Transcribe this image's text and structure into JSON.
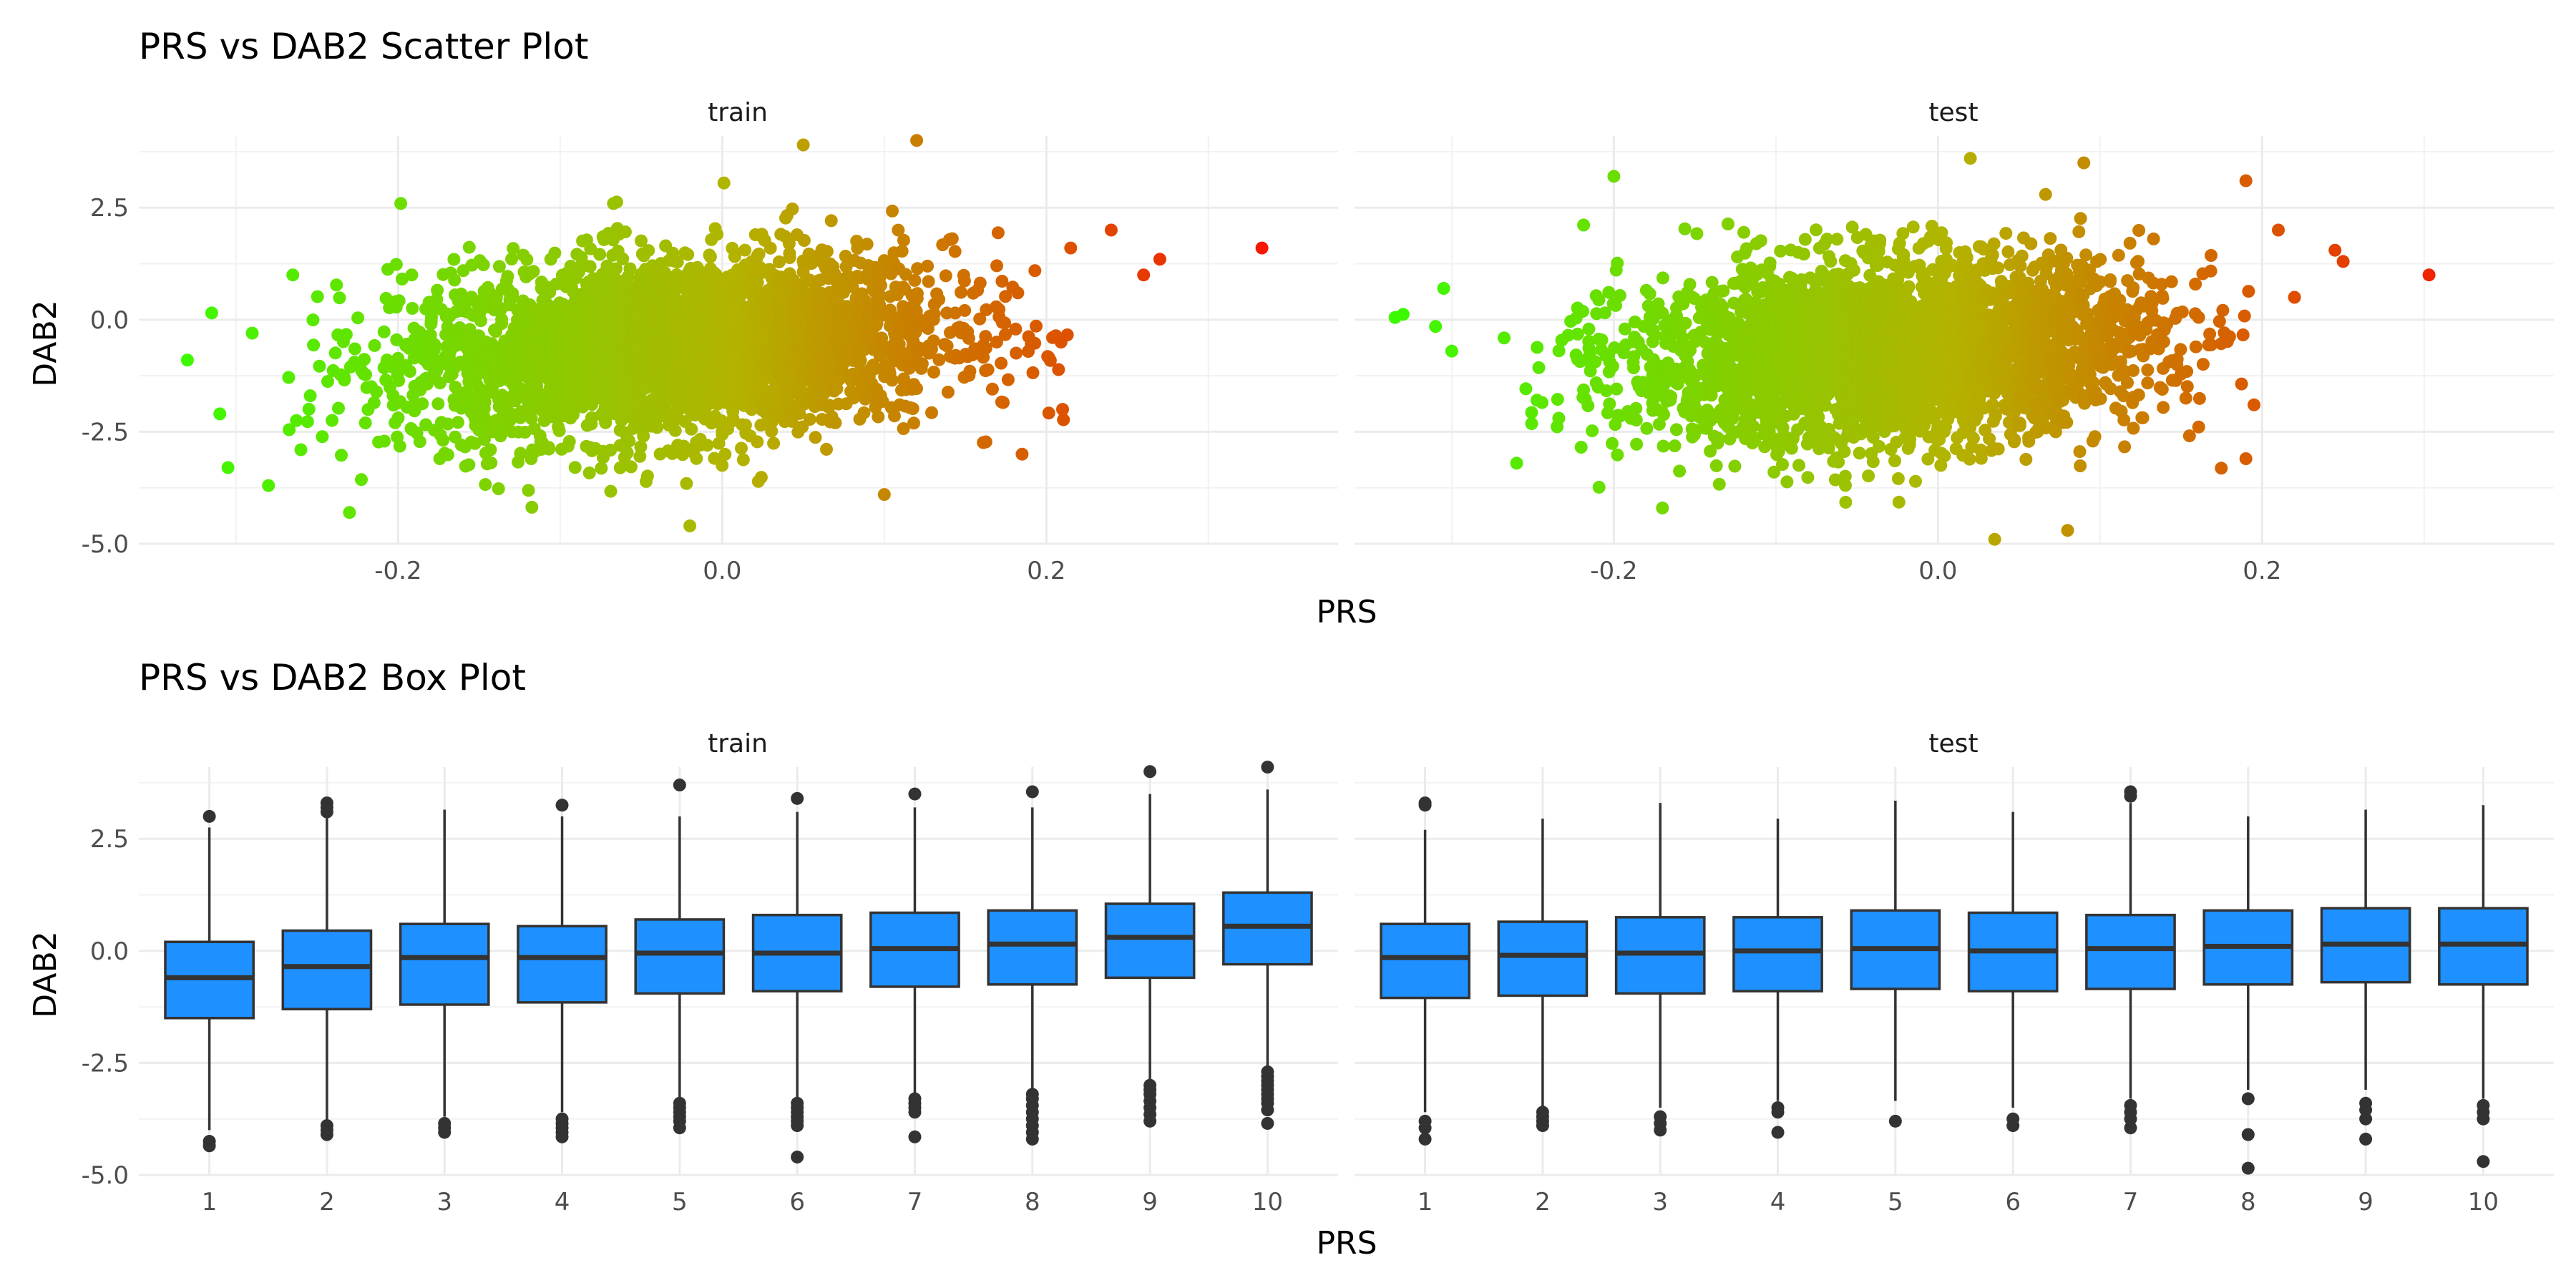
{
  "chart_data": [
    {
      "type": "scatter",
      "title": "PRS vs DAB2 Scatter Plot",
      "xlabel": "PRS",
      "ylabel": "DAB2",
      "facets": [
        "train",
        "test"
      ],
      "xlim": [
        -0.36,
        0.38
      ],
      "ylim": [
        -5.0,
        4.1
      ],
      "x_ticks": [
        -0.2,
        0.0,
        0.2
      ],
      "x_tick_labels": [
        "-0.2",
        "0.0",
        "0.2"
      ],
      "y_ticks": [
        -5.0,
        -2.5,
        0.0,
        2.5
      ],
      "y_tick_labels": [
        "-5.0",
        "-2.5",
        "0.0",
        "2.5"
      ],
      "grid": true,
      "color_scale": {
        "low": "#33ff00",
        "mid": "#b3b300",
        "high": "#ff0000",
        "variable": "PRS"
      },
      "panels": [
        {
          "facet": "train",
          "point_cloud": {
            "x_mean": -0.03,
            "x_sd": 0.085,
            "y_mean": -0.6,
            "y_sd": 1.0,
            "slope": 2.2
          },
          "outliers": [
            {
              "x": 0.333,
              "y": 1.6
            },
            {
              "x": 0.27,
              "y": 1.35
            },
            {
              "x": 0.26,
              "y": 1.0
            },
            {
              "x": 0.24,
              "y": 2.0
            },
            {
              "x": 0.215,
              "y": 1.6
            },
            {
              "x": 0.21,
              "y": -2.0
            },
            {
              "x": 0.185,
              "y": -3.0
            },
            {
              "x": -0.33,
              "y": -0.9
            },
            {
              "x": -0.315,
              "y": 0.15
            },
            {
              "x": -0.31,
              "y": -2.1
            },
            {
              "x": -0.305,
              "y": -3.3
            },
            {
              "x": -0.29,
              "y": -0.3
            },
            {
              "x": -0.28,
              "y": -3.7
            },
            {
              "x": -0.265,
              "y": 1.0
            },
            {
              "x": -0.26,
              "y": -2.9
            },
            {
              "x": 0.12,
              "y": 4.0
            },
            {
              "x": -0.02,
              "y": -4.6
            },
            {
              "x": 0.05,
              "y": 3.9
            },
            {
              "x": -0.23,
              "y": -4.3
            },
            {
              "x": 0.1,
              "y": -3.9
            }
          ]
        },
        {
          "facet": "test",
          "point_cloud": {
            "x_mean": -0.03,
            "x_sd": 0.08,
            "y_mean": -0.7,
            "y_sd": 1.0,
            "slope": 2.0
          },
          "outliers": [
            {
              "x": 0.303,
              "y": 1.0
            },
            {
              "x": 0.25,
              "y": 1.3
            },
            {
              "x": 0.245,
              "y": 1.55
            },
            {
              "x": 0.22,
              "y": 0.5
            },
            {
              "x": 0.21,
              "y": 2.0
            },
            {
              "x": 0.195,
              "y": -1.9
            },
            {
              "x": 0.19,
              "y": -3.1
            },
            {
              "x": -0.335,
              "y": 0.05
            },
            {
              "x": -0.33,
              "y": 0.12
            },
            {
              "x": -0.31,
              "y": -0.15
            },
            {
              "x": -0.305,
              "y": 0.7
            },
            {
              "x": -0.3,
              "y": -0.7
            },
            {
              "x": -0.26,
              "y": -3.2
            },
            {
              "x": -0.2,
              "y": 3.2
            },
            {
              "x": 0.035,
              "y": -4.9
            },
            {
              "x": 0.08,
              "y": -4.7
            },
            {
              "x": 0.09,
              "y": 3.5
            },
            {
              "x": 0.02,
              "y": 3.6
            },
            {
              "x": -0.17,
              "y": -4.2
            },
            {
              "x": 0.19,
              "y": 3.1
            }
          ]
        }
      ]
    },
    {
      "type": "box",
      "title": "PRS vs DAB2 Box Plot",
      "xlabel": "PRS",
      "ylabel": "DAB2",
      "facets": [
        "train",
        "test"
      ],
      "categories": [
        "1",
        "2",
        "3",
        "4",
        "5",
        "6",
        "7",
        "8",
        "9",
        "10"
      ],
      "ylim": [
        -5.0,
        4.1
      ],
      "y_ticks": [
        -5.0,
        -2.5,
        0.0,
        2.5
      ],
      "y_tick_labels": [
        "-5.0",
        "-2.5",
        "0.0",
        "2.5"
      ],
      "box_fill": "#1e90ff",
      "box_line": "#333333",
      "grid": true,
      "panels": [
        {
          "facet": "train",
          "boxes": [
            {
              "category": "1",
              "q1": -1.5,
              "median": -0.6,
              "q3": 0.2,
              "whisker_low": -4.0,
              "whisker_high": 2.75,
              "outliers": [
                3.0,
                -4.25,
                -4.35
              ]
            },
            {
              "category": "2",
              "q1": -1.3,
              "median": -0.35,
              "q3": 0.45,
              "whisker_low": -3.8,
              "whisker_high": 3.0,
              "outliers": [
                3.1,
                3.2,
                3.3,
                -3.9,
                -4.0,
                -4.1
              ]
            },
            {
              "category": "3",
              "q1": -1.2,
              "median": -0.15,
              "q3": 0.6,
              "whisker_low": -3.7,
              "whisker_high": 3.15,
              "outliers": [
                -3.85,
                -3.95,
                -4.05
              ]
            },
            {
              "category": "4",
              "q1": -1.15,
              "median": -0.15,
              "q3": 0.55,
              "whisker_low": -3.6,
              "whisker_high": 3.0,
              "outliers": [
                3.25,
                -3.75,
                -3.85,
                -3.95,
                -4.05,
                -4.15
              ]
            },
            {
              "category": "5",
              "q1": -0.95,
              "median": -0.05,
              "q3": 0.7,
              "whisker_low": -3.3,
              "whisker_high": 3.0,
              "outliers": [
                3.7,
                -3.4,
                -3.5,
                -3.6,
                -3.7,
                -3.8,
                -3.95
              ]
            },
            {
              "category": "6",
              "q1": -0.9,
              "median": -0.05,
              "q3": 0.8,
              "whisker_low": -3.3,
              "whisker_high": 3.1,
              "outliers": [
                3.4,
                -3.4,
                -3.5,
                -3.6,
                -3.7,
                -3.8,
                -3.9,
                -4.6
              ]
            },
            {
              "category": "7",
              "q1": -0.8,
              "median": 0.05,
              "q3": 0.85,
              "whisker_low": -3.2,
              "whisker_high": 3.2,
              "outliers": [
                3.5,
                -3.3,
                -3.4,
                -3.5,
                -3.6,
                -4.15
              ]
            },
            {
              "category": "8",
              "q1": -0.75,
              "median": 0.15,
              "q3": 0.9,
              "whisker_low": -3.1,
              "whisker_high": 3.2,
              "outliers": [
                3.55,
                -3.2,
                -3.3,
                -3.45,
                -3.6,
                -3.75,
                -3.9,
                -4.05,
                -4.2
              ]
            },
            {
              "category": "9",
              "q1": -0.6,
              "median": 0.3,
              "q3": 1.05,
              "whisker_low": -2.9,
              "whisker_high": 3.5,
              "outliers": [
                4.0,
                -3.0,
                -3.1,
                -3.2,
                -3.35,
                -3.5,
                -3.65,
                -3.8
              ]
            },
            {
              "category": "10",
              "q1": -0.3,
              "median": 0.55,
              "q3": 1.3,
              "whisker_low": -2.6,
              "whisker_high": 3.6,
              "outliers": [
                4.1,
                -2.7,
                -2.8,
                -2.9,
                -3.0,
                -3.1,
                -3.2,
                -3.3,
                -3.4,
                -3.55,
                -3.85
              ]
            }
          ]
        },
        {
          "facet": "test",
          "boxes": [
            {
              "category": "1",
              "q1": -1.05,
              "median": -0.15,
              "q3": 0.6,
              "whisker_low": -3.6,
              "whisker_high": 2.7,
              "outliers": [
                3.25,
                3.3,
                -3.8,
                -3.95,
                -4.2
              ]
            },
            {
              "category": "2",
              "q1": -1.0,
              "median": -0.1,
              "q3": 0.65,
              "whisker_low": -3.5,
              "whisker_high": 2.95,
              "outliers": [
                -3.6,
                -3.7,
                -3.8,
                -3.9
              ]
            },
            {
              "category": "3",
              "q1": -0.95,
              "median": -0.05,
              "q3": 0.75,
              "whisker_low": -3.5,
              "whisker_high": 3.3,
              "outliers": [
                -3.7,
                -3.85,
                -4.0
              ]
            },
            {
              "category": "4",
              "q1": -0.9,
              "median": 0.0,
              "q3": 0.75,
              "whisker_low": -3.35,
              "whisker_high": 2.95,
              "outliers": [
                -3.5,
                -3.6,
                -4.05
              ]
            },
            {
              "category": "5",
              "q1": -0.85,
              "median": 0.05,
              "q3": 0.9,
              "whisker_low": -3.35,
              "whisker_high": 3.35,
              "outliers": [
                -3.8
              ]
            },
            {
              "category": "6",
              "q1": -0.9,
              "median": 0.0,
              "q3": 0.85,
              "whisker_low": -3.5,
              "whisker_high": 3.1,
              "outliers": [
                -3.75,
                -3.9
              ]
            },
            {
              "category": "7",
              "q1": -0.85,
              "median": 0.05,
              "q3": 0.8,
              "whisker_low": -3.3,
              "whisker_high": 3.3,
              "outliers": [
                3.45,
                3.55,
                -3.45,
                -3.6,
                -3.75,
                -3.95
              ]
            },
            {
              "category": "8",
              "q1": -0.75,
              "median": 0.1,
              "q3": 0.9,
              "whisker_low": -3.1,
              "whisker_high": 3.0,
              "outliers": [
                -3.3,
                -4.1,
                -4.85
              ]
            },
            {
              "category": "9",
              "q1": -0.7,
              "median": 0.15,
              "q3": 0.95,
              "whisker_low": -3.1,
              "whisker_high": 3.15,
              "outliers": [
                -3.4,
                -3.55,
                -3.75,
                -4.2
              ]
            },
            {
              "category": "10",
              "q1": -0.75,
              "median": 0.15,
              "q3": 0.95,
              "whisker_low": -3.3,
              "whisker_high": 3.25,
              "outliers": [
                -3.45,
                -3.6,
                -3.75,
                -4.7
              ]
            }
          ]
        }
      ]
    }
  ]
}
